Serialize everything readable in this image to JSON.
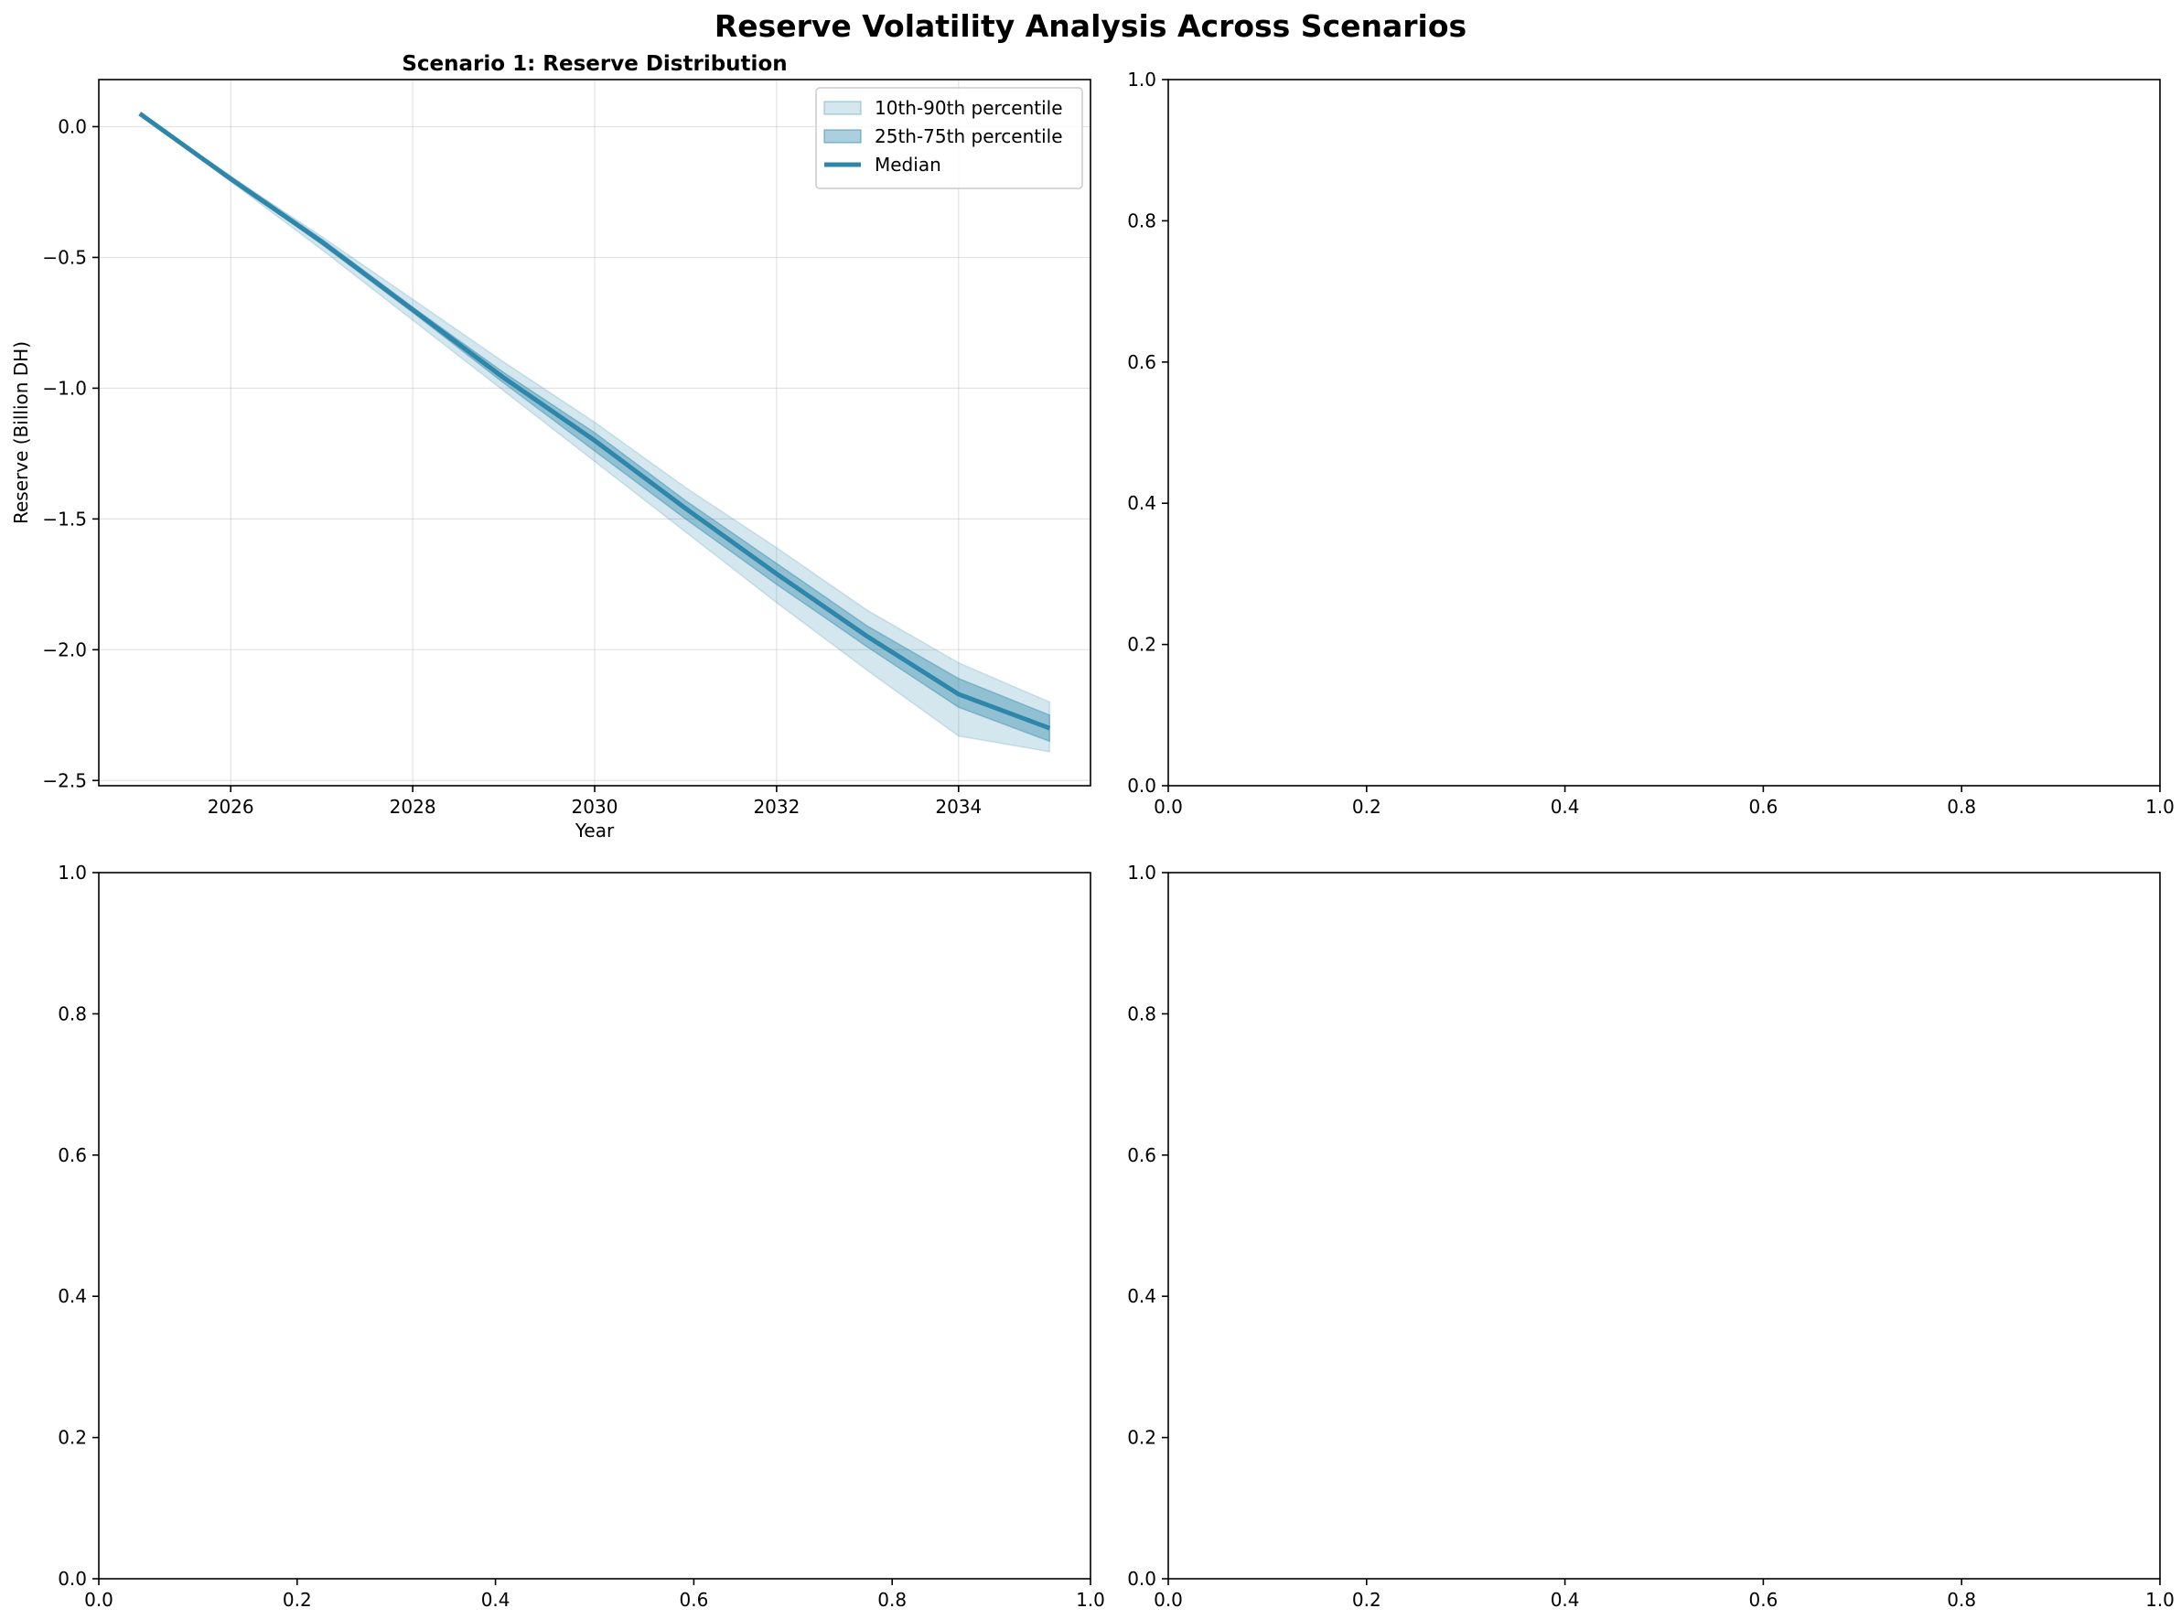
{
  "figure": {
    "suptitle": "Reserve Volatility Analysis Across Scenarios"
  },
  "chart_data": [
    {
      "type": "area",
      "title": "Scenario 1: Reserve Distribution",
      "xlabel": "Year",
      "ylabel": "Reserve (Billion DH)",
      "xlim": [
        2024.55,
        2035.45
      ],
      "ylim": [
        -2.52,
        0.18
      ],
      "xticks": [
        2026,
        2028,
        2030,
        2032,
        2034
      ],
      "xtick_labels": [
        "2026",
        "2028",
        "2030",
        "2032",
        "2034"
      ],
      "yticks": [
        0.0,
        -0.5,
        -1.0,
        -1.5,
        -2.0,
        -2.5
      ],
      "ytick_labels": [
        "0.0",
        "−0.5",
        "−1.0",
        "−1.5",
        "−2.0",
        "−2.5"
      ],
      "grid": true,
      "legend_position": "top-right",
      "x": [
        2025,
        2026,
        2027,
        2028,
        2029,
        2030,
        2031,
        2032,
        2033,
        2034,
        2035
      ],
      "series": [
        {
          "name": "10th-90th percentile",
          "kind": "band",
          "low": [
            0.05,
            -0.21,
            -0.47,
            -0.74,
            -1.01,
            -1.28,
            -1.55,
            -1.82,
            -2.08,
            -2.33,
            -2.39
          ],
          "high": [
            0.05,
            -0.19,
            -0.42,
            -0.66,
            -0.9,
            -1.13,
            -1.38,
            -1.61,
            -1.85,
            -2.05,
            -2.2
          ],
          "color": "#2e86ab",
          "opacity": 0.2
        },
        {
          "name": "25th-75th percentile",
          "kind": "band",
          "low": [
            0.05,
            -0.2,
            -0.45,
            -0.71,
            -0.98,
            -1.24,
            -1.5,
            -1.75,
            -1.99,
            -2.22,
            -2.35
          ],
          "high": [
            0.05,
            -0.19,
            -0.43,
            -0.69,
            -0.94,
            -1.17,
            -1.43,
            -1.67,
            -1.91,
            -2.11,
            -2.25
          ],
          "color": "#2e86ab",
          "opacity": 0.4
        },
        {
          "name": "Median",
          "kind": "line",
          "values": [
            0.05,
            -0.2,
            -0.44,
            -0.7,
            -0.96,
            -1.2,
            -1.46,
            -1.71,
            -1.95,
            -2.17,
            -2.3
          ],
          "color": "#2e86ab"
        }
      ]
    },
    {
      "type": "line",
      "title": "",
      "xlabel": "",
      "ylabel": "",
      "xlim": [
        0,
        1
      ],
      "ylim": [
        0,
        1
      ],
      "xticks": [
        0,
        0.2,
        0.4,
        0.6,
        0.8,
        1.0
      ],
      "xtick_labels": [
        "0.0",
        "0.2",
        "0.4",
        "0.6",
        "0.8",
        "1.0"
      ],
      "yticks": [
        0,
        0.2,
        0.4,
        0.6,
        0.8,
        1.0
      ],
      "ytick_labels": [
        "0.0",
        "0.2",
        "0.4",
        "0.6",
        "0.8",
        "1.0"
      ],
      "grid": false,
      "series": []
    },
    {
      "type": "line",
      "title": "",
      "xlabel": "",
      "ylabel": "",
      "xlim": [
        0,
        1
      ],
      "ylim": [
        0,
        1
      ],
      "xticks": [
        0,
        0.2,
        0.4,
        0.6,
        0.8,
        1.0
      ],
      "xtick_labels": [
        "0.0",
        "0.2",
        "0.4",
        "0.6",
        "0.8",
        "1.0"
      ],
      "yticks": [
        0,
        0.2,
        0.4,
        0.6,
        0.8,
        1.0
      ],
      "ytick_labels": [
        "0.0",
        "0.2",
        "0.4",
        "0.6",
        "0.8",
        "1.0"
      ],
      "grid": false,
      "series": []
    },
    {
      "type": "line",
      "title": "",
      "xlabel": "",
      "ylabel": "",
      "xlim": [
        0,
        1
      ],
      "ylim": [
        0,
        1
      ],
      "xticks": [
        0,
        0.2,
        0.4,
        0.6,
        0.8,
        1.0
      ],
      "xtick_labels": [
        "0.0",
        "0.2",
        "0.4",
        "0.6",
        "0.8",
        "1.0"
      ],
      "yticks": [
        0,
        0.2,
        0.4,
        0.6,
        0.8,
        1.0
      ],
      "ytick_labels": [
        "0.0",
        "0.2",
        "0.4",
        "0.6",
        "0.8",
        "1.0"
      ],
      "grid": false,
      "series": []
    }
  ]
}
